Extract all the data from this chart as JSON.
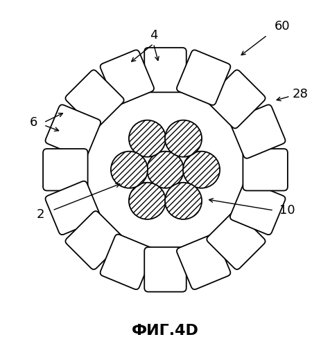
{
  "title": "ФИГ.4D",
  "title_fontsize": 16,
  "title_fontweight": "bold",
  "background_color": "#ffffff",
  "line_color": "#000000",
  "label_fontsize": 13,
  "figsize": [
    4.77,
    5.0
  ],
  "dpi": 100,
  "inner_strand_r": 0.28,
  "outer_strand_r": 0.28,
  "outer_ring_R": 1.52,
  "n_outer": 16,
  "hatch": "////",
  "lw": 1.3
}
